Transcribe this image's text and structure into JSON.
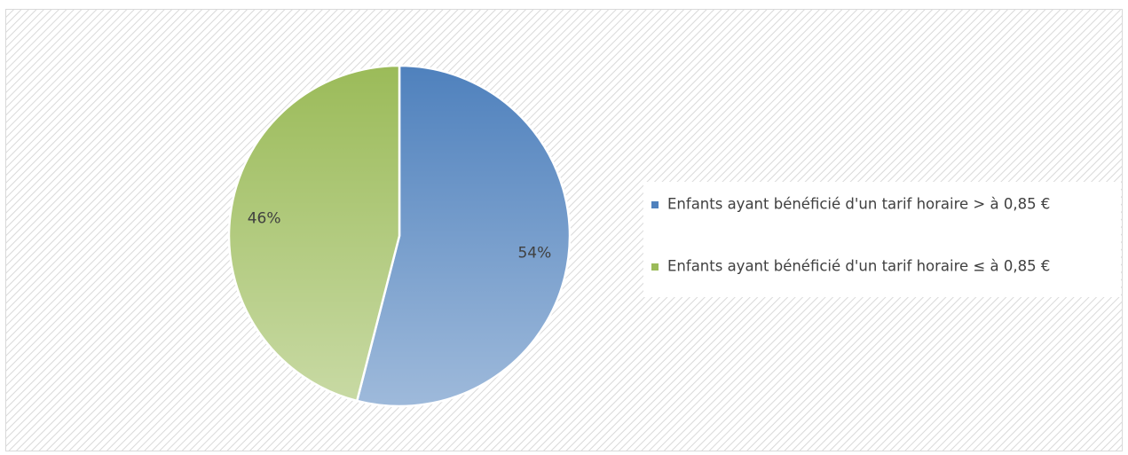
{
  "chart_data": {
    "type": "pie",
    "categories": [
      "Enfants ayant bénéficié d'un tarif horaire > à 0,85 €",
      "Enfants ayant bénéficié d'un tarif horaire ≤ à 0,85 €"
    ],
    "values": [
      54,
      46
    ],
    "value_labels": [
      "54%",
      "46%"
    ],
    "colors": [
      "#4f81bd",
      "#9bbb59"
    ],
    "legend": "right"
  }
}
